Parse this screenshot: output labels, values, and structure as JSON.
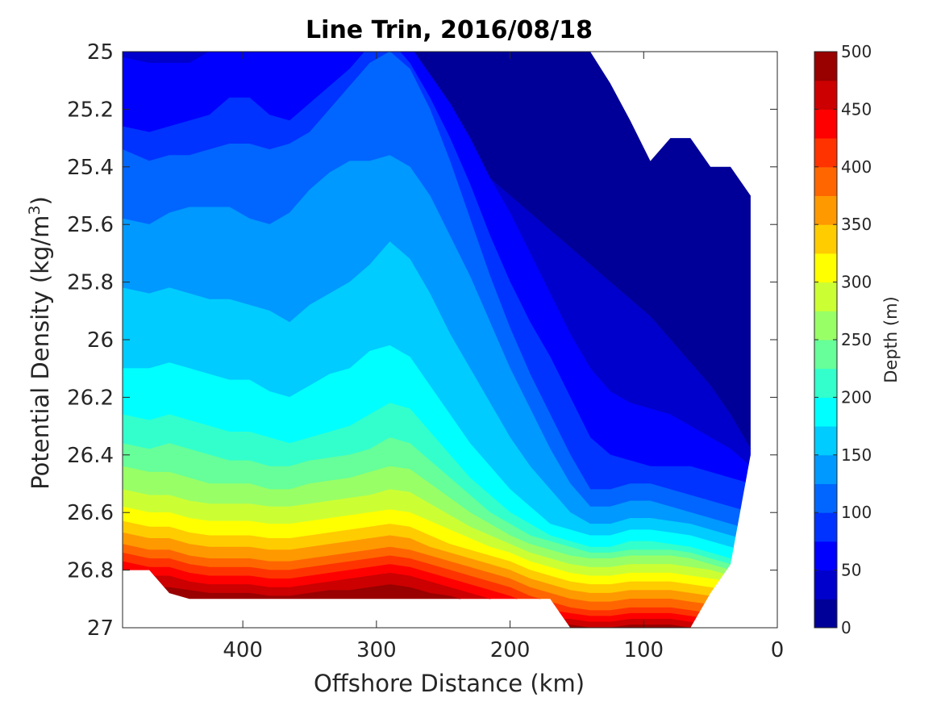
{
  "chart_data": {
    "type": "filled-contour",
    "title": "Line Trin, 2016/08/18",
    "xlabel": "Offshore Distance (km)",
    "ylabel": "Potential Density (kg/m3)",
    "ylabel_parts": {
      "main": "Potential Density (kg/m",
      "sup": "3",
      "close": ")"
    },
    "xlim": [
      490,
      0
    ],
    "x_reversed": true,
    "ylim": [
      25,
      27
    ],
    "y_reversed": true,
    "x_ticks": [
      400,
      300,
      200,
      100,
      0
    ],
    "x_tick_labels": [
      "400",
      "300",
      "200",
      "100",
      "0"
    ],
    "y_ticks": [
      25,
      25.2,
      25.4,
      25.6,
      25.8,
      26,
      26.2,
      26.4,
      26.6,
      26.8,
      27
    ],
    "y_tick_labels": [
      "25",
      "25.2",
      "25.4",
      "25.6",
      "25.8",
      "26",
      "26.2",
      "26.4",
      "26.6",
      "26.8",
      "27"
    ],
    "colorbar": {
      "label": "Depth (m)",
      "range": [
        0,
        500
      ],
      "step": 25,
      "ticks": [
        0,
        50,
        100,
        150,
        200,
        250,
        300,
        350,
        400,
        450,
        500
      ],
      "tick_labels": [
        "0",
        "50",
        "100",
        "150",
        "200",
        "250",
        "300",
        "350",
        "400",
        "450",
        "500"
      ],
      "colormap": "jet"
    },
    "grid": false,
    "x": [
      490,
      470,
      455,
      440,
      425,
      410,
      395,
      380,
      365,
      350,
      335,
      320,
      305,
      290,
      275,
      260,
      245,
      230,
      215,
      200,
      185,
      170,
      155,
      140,
      125,
      110,
      95,
      80,
      65,
      50,
      35,
      20
    ],
    "data_top_density": [
      25,
      25,
      25,
      25,
      25,
      25,
      25,
      25,
      25,
      25,
      25,
      25,
      25,
      25,
      25,
      25,
      25,
      25,
      25,
      25,
      25,
      25,
      25,
      25,
      25.11,
      25.24,
      25.38,
      25.3,
      25.3,
      25.4,
      25.4,
      25.5
    ],
    "data_bottom_density": [
      26.8,
      26.8,
      26.88,
      26.9,
      26.9,
      26.9,
      26.9,
      26.9,
      26.9,
      26.9,
      26.9,
      26.9,
      26.9,
      26.9,
      26.9,
      26.9,
      26.9,
      26.9,
      26.9,
      26.9,
      26.9,
      26.9,
      27,
      27,
      27,
      27,
      27,
      27,
      27,
      26.88,
      26.78,
      26.4
    ],
    "contour_levels": [
      25,
      50,
      75,
      100,
      125,
      150,
      175,
      200,
      225,
      250,
      275,
      300,
      325,
      350,
      375,
      400,
      425,
      450,
      475
    ],
    "isobath_densities": [
      [
        25.0,
        25.0,
        25.0,
        25.0,
        24.98,
        24.96,
        24.98,
        25.0,
        24.98,
        24.94,
        24.9,
        24.86,
        24.86,
        24.9,
        24.98,
        25.14,
        25.28,
        25.38,
        25.44,
        25.5,
        25.56,
        25.62,
        25.68,
        25.74,
        25.8,
        25.86,
        25.92,
        26.0,
        26.08,
        26.16,
        26.26,
        26.38
      ],
      [
        25.02,
        25.04,
        25.04,
        25.04,
        25.0,
        24.96,
        24.98,
        25.0,
        24.98,
        24.96,
        24.92,
        24.88,
        24.88,
        24.92,
        24.98,
        25.08,
        25.18,
        25.3,
        25.44,
        25.56,
        25.7,
        25.84,
        25.98,
        26.1,
        26.18,
        26.22,
        26.24,
        26.26,
        26.3,
        26.34,
        26.38,
        26.44
      ],
      [
        25.26,
        25.28,
        25.26,
        25.24,
        25.22,
        25.16,
        25.16,
        25.22,
        25.24,
        25.18,
        25.12,
        25.06,
        24.98,
        24.96,
        25.04,
        25.16,
        25.3,
        25.46,
        25.64,
        25.8,
        25.94,
        26.06,
        26.2,
        26.34,
        26.4,
        26.42,
        26.44,
        26.44,
        26.44,
        26.46,
        26.48,
        26.5
      ],
      [
        25.34,
        25.38,
        25.36,
        25.36,
        25.34,
        25.32,
        25.32,
        25.34,
        25.32,
        25.28,
        25.2,
        25.12,
        25.04,
        25.0,
        25.06,
        25.2,
        25.38,
        25.58,
        25.78,
        25.96,
        26.12,
        26.26,
        26.4,
        26.52,
        26.52,
        26.5,
        26.5,
        26.52,
        26.54,
        26.56,
        26.58,
        26.6
      ],
      [
        25.58,
        25.6,
        25.56,
        25.54,
        25.54,
        25.54,
        25.58,
        25.6,
        25.56,
        25.48,
        25.42,
        25.38,
        25.38,
        25.36,
        25.4,
        25.5,
        25.64,
        25.78,
        25.94,
        26.1,
        26.24,
        26.38,
        26.5,
        26.58,
        26.58,
        26.56,
        26.56,
        26.58,
        26.6,
        26.62,
        26.64,
        26.66
      ],
      [
        25.82,
        25.84,
        25.82,
        25.84,
        25.86,
        25.86,
        25.88,
        25.9,
        25.94,
        25.88,
        25.84,
        25.8,
        25.74,
        25.66,
        25.72,
        25.84,
        25.98,
        26.1,
        26.22,
        26.34,
        26.44,
        26.52,
        26.6,
        26.64,
        26.64,
        26.62,
        26.62,
        26.63,
        26.64,
        26.66,
        26.68,
        26.7
      ],
      [
        26.1,
        26.1,
        26.08,
        26.1,
        26.12,
        26.14,
        26.14,
        26.18,
        26.2,
        26.16,
        26.12,
        26.1,
        26.04,
        26.02,
        26.06,
        26.16,
        26.26,
        26.36,
        26.44,
        26.52,
        26.58,
        26.64,
        26.66,
        26.68,
        26.68,
        26.66,
        26.66,
        26.67,
        26.68,
        26.7,
        26.72,
        26.74
      ],
      [
        26.26,
        26.28,
        26.26,
        26.28,
        26.3,
        26.32,
        26.32,
        26.34,
        26.36,
        26.34,
        26.32,
        26.3,
        26.26,
        26.22,
        26.24,
        26.32,
        26.4,
        26.48,
        26.54,
        26.6,
        26.64,
        26.68,
        26.7,
        26.72,
        26.72,
        26.7,
        26.7,
        26.71,
        26.72,
        26.74,
        26.76,
        26.78
      ],
      [
        26.36,
        26.38,
        26.36,
        26.38,
        26.4,
        26.42,
        26.42,
        26.44,
        26.44,
        26.42,
        26.41,
        26.4,
        26.38,
        26.34,
        26.36,
        26.42,
        26.48,
        26.54,
        26.6,
        26.64,
        26.68,
        26.7,
        26.72,
        26.74,
        26.74,
        26.73,
        26.73,
        26.73,
        26.74,
        26.76,
        26.78,
        26.8
      ],
      [
        26.44,
        26.46,
        26.46,
        26.48,
        26.5,
        26.5,
        26.5,
        26.52,
        26.52,
        26.5,
        26.49,
        26.48,
        26.46,
        26.44,
        26.45,
        26.5,
        26.55,
        26.6,
        26.64,
        26.68,
        26.71,
        26.73,
        26.75,
        26.76,
        26.76,
        26.75,
        26.75,
        26.75,
        26.76,
        26.78,
        26.8,
        26.82
      ],
      [
        26.52,
        26.54,
        26.54,
        26.56,
        26.57,
        26.57,
        26.57,
        26.58,
        26.58,
        26.57,
        26.56,
        26.55,
        26.54,
        26.52,
        26.53,
        26.57,
        26.61,
        26.65,
        26.68,
        26.71,
        26.74,
        26.76,
        26.78,
        26.79,
        26.79,
        26.78,
        26.78,
        26.78,
        26.79,
        26.8,
        26.82,
        26.84
      ],
      [
        26.58,
        26.6,
        26.6,
        26.62,
        26.63,
        26.63,
        26.63,
        26.64,
        26.64,
        26.63,
        26.62,
        26.61,
        26.6,
        26.59,
        26.6,
        26.63,
        26.66,
        26.69,
        26.72,
        26.74,
        26.77,
        26.79,
        26.81,
        26.82,
        26.82,
        26.81,
        26.81,
        26.81,
        26.82,
        26.83,
        26.84,
        26.86
      ],
      [
        26.63,
        26.65,
        26.65,
        26.67,
        26.68,
        26.68,
        26.68,
        26.69,
        26.69,
        26.68,
        26.67,
        26.66,
        26.65,
        26.64,
        26.65,
        26.68,
        26.71,
        26.73,
        26.75,
        26.77,
        26.8,
        26.82,
        26.84,
        26.85,
        26.85,
        26.84,
        26.84,
        26.84,
        26.85,
        26.86,
        26.87,
        26.88
      ],
      [
        26.67,
        26.69,
        26.69,
        26.71,
        26.72,
        26.72,
        26.72,
        26.73,
        26.73,
        26.72,
        26.71,
        26.7,
        26.69,
        26.68,
        26.69,
        26.72,
        26.74,
        26.76,
        26.78,
        26.8,
        26.83,
        26.85,
        26.87,
        26.88,
        26.88,
        26.87,
        26.87,
        26.87,
        26.88,
        26.89,
        26.9,
        26.91
      ],
      [
        26.71,
        26.73,
        26.73,
        26.75,
        26.76,
        26.76,
        26.76,
        26.77,
        26.77,
        26.76,
        26.75,
        26.74,
        26.73,
        26.72,
        26.73,
        26.75,
        26.77,
        26.79,
        26.81,
        26.83,
        26.86,
        26.88,
        26.9,
        26.91,
        26.91,
        26.9,
        26.9,
        26.9,
        26.91,
        26.92,
        26.93,
        26.94
      ],
      [
        26.74,
        26.76,
        26.76,
        26.78,
        26.79,
        26.79,
        26.79,
        26.8,
        26.8,
        26.79,
        26.78,
        26.77,
        26.76,
        26.75,
        26.76,
        26.78,
        26.8,
        26.82,
        26.84,
        26.86,
        26.89,
        26.91,
        26.93,
        26.94,
        26.94,
        26.93,
        26.93,
        26.93,
        26.94,
        26.95,
        26.96,
        26.97
      ],
      [
        26.77,
        26.79,
        26.79,
        26.81,
        26.82,
        26.82,
        26.82,
        26.83,
        26.83,
        26.82,
        26.81,
        26.8,
        26.79,
        26.78,
        26.79,
        26.81,
        26.83,
        26.85,
        26.87,
        26.89,
        26.92,
        26.94,
        26.95,
        26.96,
        26.96,
        26.95,
        26.95,
        26.95,
        26.96,
        26.97,
        26.98,
        26.99
      ],
      [
        26.8,
        26.82,
        26.82,
        26.84,
        26.85,
        26.85,
        26.85,
        26.86,
        26.86,
        26.85,
        26.84,
        26.83,
        26.82,
        26.81,
        26.82,
        26.84,
        26.86,
        26.88,
        26.9,
        26.92,
        26.95,
        26.97,
        26.97,
        26.98,
        26.98,
        26.97,
        26.97,
        26.97,
        26.98,
        26.99,
        27.0,
        27.0
      ],
      [
        26.84,
        26.86,
        26.86,
        26.87,
        26.88,
        26.88,
        26.88,
        26.89,
        26.89,
        26.88,
        26.87,
        26.87,
        26.86,
        26.85,
        26.86,
        26.88,
        26.89,
        26.91,
        26.93,
        26.95,
        26.98,
        26.99,
        26.99,
        27.0,
        27.0,
        26.99,
        26.99,
        26.99,
        27.0,
        27.0,
        27.0,
        27.0
      ]
    ]
  }
}
